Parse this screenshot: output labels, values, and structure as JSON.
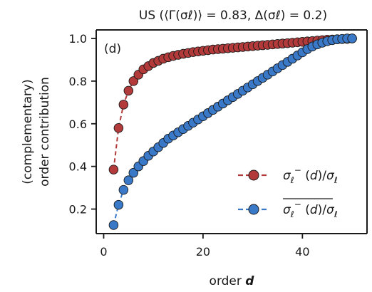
{
  "chart_data": {
    "type": "scatter",
    "title": "US (⟨Γ(σℓ)⟩ = 0.83, Δ(σℓ) = 0.2)",
    "panel_label": "(d)",
    "xlabel": "order d",
    "ylabel_line1": "(complementary)",
    "ylabel_line2": "order contribution",
    "xlim": [
      -1.5,
      53
    ],
    "ylim": [
      0.085,
      1.04
    ],
    "xticks": [
      0,
      20,
      40
    ],
    "yticks": [
      0.2,
      0.4,
      0.6,
      0.8,
      1.0
    ],
    "xtick_labels": [
      "0",
      "20",
      "40"
    ],
    "ytick_labels": [
      "0.2",
      "0.4",
      "0.6",
      "0.8",
      "1.0"
    ],
    "legend_position": "lower-right",
    "series": [
      {
        "name": "σℓ⁻(d)/σℓ",
        "color": "#b23a3a",
        "x": [
          2,
          3,
          4,
          5,
          6,
          7,
          8,
          9,
          10,
          11,
          12,
          13,
          14,
          15,
          16,
          17,
          18,
          19,
          20,
          21,
          22,
          23,
          24,
          25,
          26,
          27,
          28,
          29,
          30,
          31,
          32,
          33,
          34,
          35,
          36,
          37,
          38,
          39,
          40,
          41,
          42,
          43,
          44,
          45,
          46,
          47,
          48,
          49,
          50
        ],
        "y": [
          0.385,
          0.58,
          0.69,
          0.755,
          0.8,
          0.83,
          0.855,
          0.87,
          0.885,
          0.895,
          0.905,
          0.912,
          0.918,
          0.923,
          0.928,
          0.932,
          0.936,
          0.939,
          0.942,
          0.945,
          0.948,
          0.95,
          0.952,
          0.954,
          0.956,
          0.958,
          0.96,
          0.962,
          0.964,
          0.966,
          0.968,
          0.97,
          0.972,
          0.974,
          0.976,
          0.978,
          0.98,
          0.982,
          0.984,
          0.986,
          0.988,
          0.99,
          0.992,
          0.994,
          0.995,
          0.996,
          0.997,
          0.998,
          1.0
        ]
      },
      {
        "name": "σℓ⁻(d)/σℓ (overline)",
        "color": "#3a78c8",
        "x": [
          2,
          3,
          4,
          5,
          6,
          7,
          8,
          9,
          10,
          11,
          12,
          13,
          14,
          15,
          16,
          17,
          18,
          19,
          20,
          21,
          22,
          23,
          24,
          25,
          26,
          27,
          28,
          29,
          30,
          31,
          32,
          33,
          34,
          35,
          36,
          37,
          38,
          39,
          40,
          41,
          42,
          43,
          44,
          45,
          46,
          47,
          48,
          49,
          50
        ],
        "y": [
          0.125,
          0.22,
          0.29,
          0.335,
          0.37,
          0.4,
          0.425,
          0.45,
          0.47,
          0.49,
          0.51,
          0.53,
          0.545,
          0.56,
          0.575,
          0.59,
          0.605,
          0.62,
          0.635,
          0.65,
          0.665,
          0.68,
          0.695,
          0.71,
          0.725,
          0.74,
          0.755,
          0.77,
          0.785,
          0.8,
          0.815,
          0.83,
          0.845,
          0.86,
          0.875,
          0.89,
          0.905,
          0.92,
          0.935,
          0.95,
          0.962,
          0.972,
          0.98,
          0.987,
          0.992,
          0.996,
          0.998,
          1.0,
          1.0
        ]
      }
    ]
  }
}
